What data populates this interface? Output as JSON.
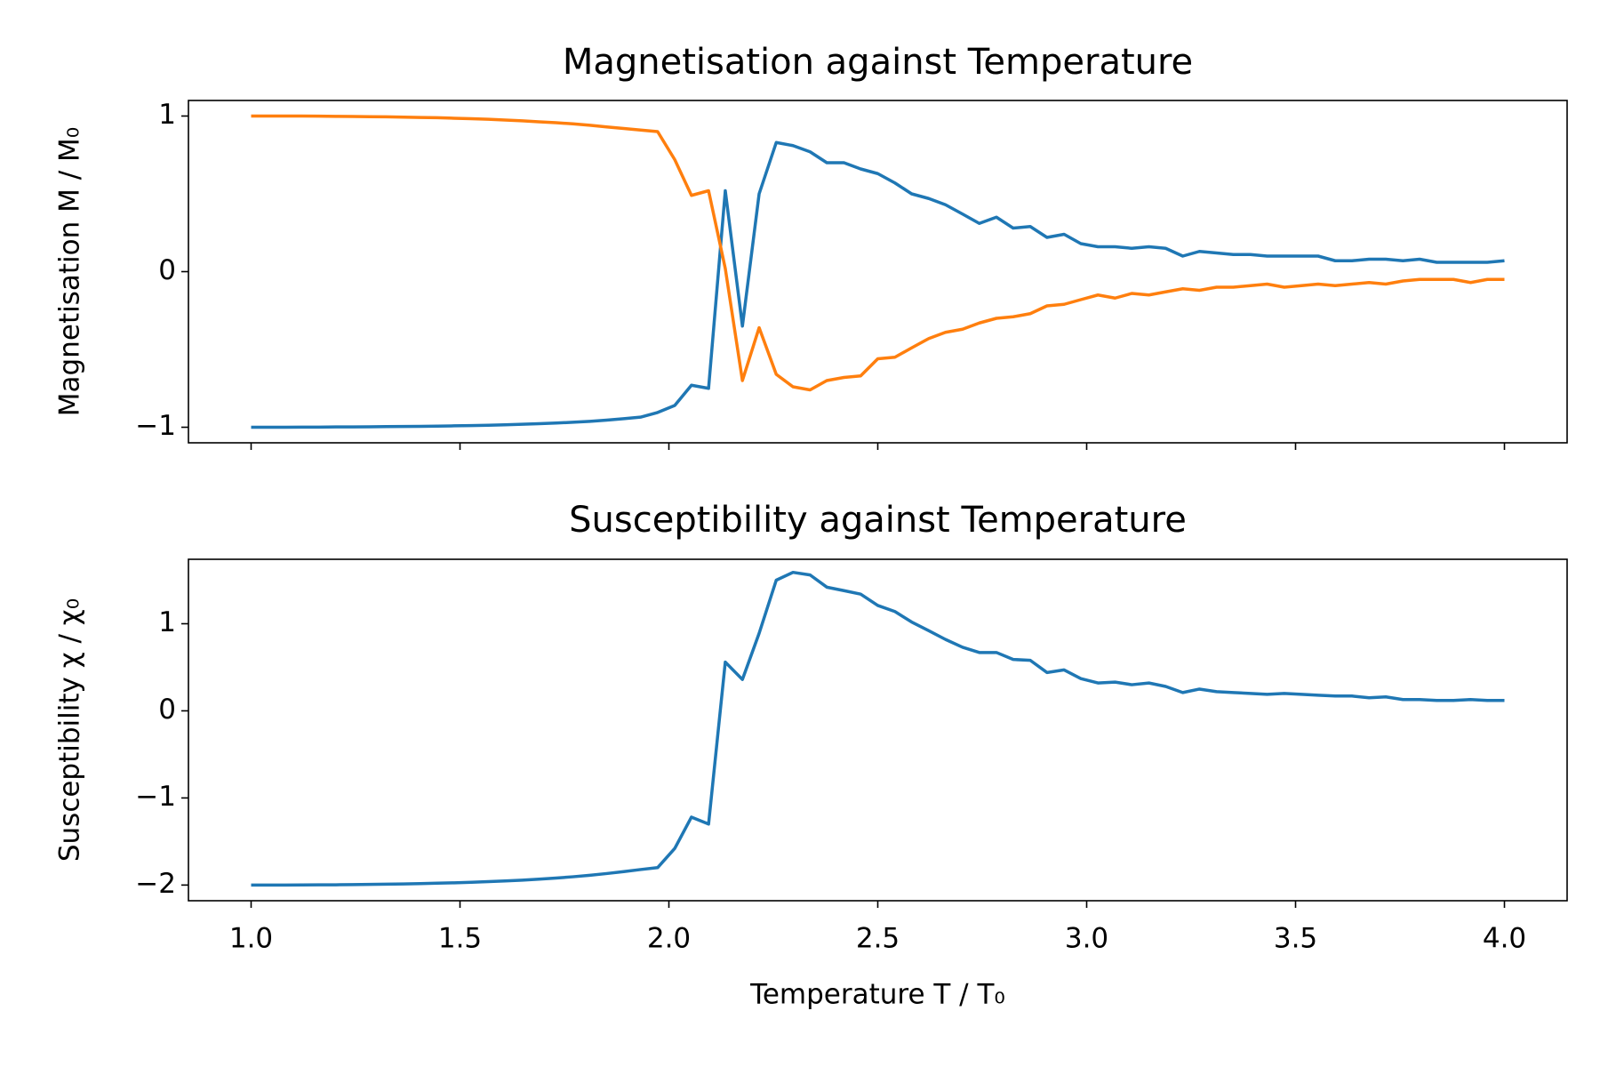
{
  "chart_data": [
    {
      "type": "line",
      "title": "Magnetisation against Temperature",
      "ylabel": "Magnetisation M / M₀",
      "x": [
        1.0,
        1.041,
        1.081,
        1.122,
        1.162,
        1.203,
        1.243,
        1.284,
        1.324,
        1.365,
        1.405,
        1.446,
        1.486,
        1.527,
        1.568,
        1.608,
        1.649,
        1.689,
        1.73,
        1.77,
        1.811,
        1.851,
        1.892,
        1.932,
        1.973,
        2.014,
        2.054,
        2.095,
        2.135,
        2.176,
        2.216,
        2.257,
        2.297,
        2.338,
        2.378,
        2.419,
        2.459,
        2.5,
        2.541,
        2.581,
        2.622,
        2.662,
        2.703,
        2.743,
        2.784,
        2.824,
        2.865,
        2.905,
        2.946,
        2.986,
        3.027,
        3.068,
        3.108,
        3.149,
        3.189,
        3.23,
        3.27,
        3.311,
        3.351,
        3.392,
        3.432,
        3.473,
        3.514,
        3.554,
        3.595,
        3.635,
        3.676,
        3.716,
        3.757,
        3.797,
        3.838,
        3.878,
        3.919,
        3.959,
        4.0
      ],
      "series": [
        {
          "color": "#1f77b4",
          "values": [
            -1.0,
            -1.0,
            -1.0,
            -0.999,
            -0.999,
            -0.998,
            -0.998,
            -0.997,
            -0.996,
            -0.995,
            -0.994,
            -0.993,
            -0.991,
            -0.989,
            -0.987,
            -0.984,
            -0.981,
            -0.977,
            -0.973,
            -0.968,
            -0.962,
            -0.954,
            -0.945,
            -0.935,
            -0.905,
            -0.86,
            -0.73,
            -0.75,
            0.52,
            -0.35,
            0.5,
            0.83,
            0.81,
            0.77,
            0.7,
            0.7,
            0.66,
            0.63,
            0.57,
            0.5,
            0.47,
            0.43,
            0.37,
            0.31,
            0.35,
            0.28,
            0.29,
            0.22,
            0.24,
            0.18,
            0.16,
            0.16,
            0.15,
            0.16,
            0.15,
            0.1,
            0.13,
            0.12,
            0.11,
            0.11,
            0.1,
            0.1,
            0.1,
            0.1,
            0.07,
            0.07,
            0.08,
            0.08,
            0.07,
            0.08,
            0.06,
            0.06,
            0.06,
            0.06,
            0.07
          ]
        },
        {
          "color": "#ff7f0e",
          "values": [
            1.0,
            1.0,
            1.0,
            1.0,
            0.999,
            0.998,
            0.997,
            0.996,
            0.995,
            0.993,
            0.991,
            0.989,
            0.986,
            0.983,
            0.979,
            0.974,
            0.969,
            0.963,
            0.957,
            0.95,
            0.941,
            0.93,
            0.92,
            0.91,
            0.9,
            0.72,
            0.49,
            0.52,
            0.02,
            -0.7,
            -0.36,
            -0.66,
            -0.74,
            -0.76,
            -0.7,
            -0.68,
            -0.67,
            -0.56,
            -0.55,
            -0.49,
            -0.43,
            -0.39,
            -0.37,
            -0.33,
            -0.3,
            -0.29,
            -0.27,
            -0.22,
            -0.21,
            -0.18,
            -0.15,
            -0.17,
            -0.14,
            -0.15,
            -0.13,
            -0.11,
            -0.12,
            -0.1,
            -0.1,
            -0.09,
            -0.08,
            -0.1,
            -0.09,
            -0.08,
            -0.09,
            -0.08,
            -0.07,
            -0.08,
            -0.06,
            -0.05,
            -0.05,
            -0.05,
            -0.07,
            -0.05,
            -0.05
          ]
        }
      ],
      "xlim": [
        0.85,
        4.15
      ],
      "xticks": [
        1,
        1.5,
        2,
        2.5,
        3,
        3.5,
        4
      ],
      "ylim": [
        -1.1,
        1.1
      ],
      "yticks": [
        {
          "value": -1,
          "label": "−1"
        },
        0,
        1
      ]
    },
    {
      "type": "line",
      "title": "Susceptibility against Temperature",
      "ylabel": "Susceptibility χ / χ₀",
      "xlabel": "Temperature T / T₀",
      "x": [
        1.0,
        1.041,
        1.081,
        1.122,
        1.162,
        1.203,
        1.243,
        1.284,
        1.324,
        1.365,
        1.405,
        1.446,
        1.486,
        1.527,
        1.568,
        1.608,
        1.649,
        1.689,
        1.73,
        1.77,
        1.811,
        1.851,
        1.892,
        1.932,
        1.973,
        2.014,
        2.054,
        2.095,
        2.135,
        2.176,
        2.216,
        2.257,
        2.297,
        2.338,
        2.378,
        2.419,
        2.459,
        2.5,
        2.541,
        2.581,
        2.622,
        2.662,
        2.703,
        2.743,
        2.784,
        2.824,
        2.865,
        2.905,
        2.946,
        2.986,
        3.027,
        3.068,
        3.108,
        3.149,
        3.189,
        3.23,
        3.27,
        3.311,
        3.351,
        3.392,
        3.432,
        3.473,
        3.514,
        3.554,
        3.595,
        3.635,
        3.676,
        3.716,
        3.757,
        3.797,
        3.838,
        3.878,
        3.919,
        3.959,
        4.0
      ],
      "series": [
        {
          "color": "#1f77b4",
          "values": [
            -2.0,
            -2.0,
            -2.0,
            -1.999,
            -1.998,
            -1.997,
            -1.995,
            -1.993,
            -1.99,
            -1.987,
            -1.983,
            -1.979,
            -1.974,
            -1.968,
            -1.961,
            -1.953,
            -1.944,
            -1.933,
            -1.92,
            -1.905,
            -1.888,
            -1.868,
            -1.846,
            -1.822,
            -1.8,
            -1.58,
            -1.22,
            -1.3,
            0.56,
            0.36,
            0.89,
            1.5,
            1.59,
            1.56,
            1.42,
            1.38,
            1.34,
            1.21,
            1.14,
            1.02,
            0.92,
            0.82,
            0.73,
            0.67,
            0.67,
            0.59,
            0.58,
            0.44,
            0.47,
            0.37,
            0.32,
            0.33,
            0.3,
            0.32,
            0.28,
            0.21,
            0.25,
            0.22,
            0.21,
            0.2,
            0.19,
            0.2,
            0.19,
            0.18,
            0.17,
            0.17,
            0.15,
            0.16,
            0.13,
            0.13,
            0.12,
            0.12,
            0.13,
            0.12,
            0.12
          ]
        }
      ],
      "xlim": [
        0.85,
        4.15
      ],
      "xticks": [
        {
          "value": 1,
          "label": "1.0"
        },
        {
          "value": 1.5,
          "label": "1.5"
        },
        {
          "value": 2,
          "label": "2.0"
        },
        {
          "value": 2.5,
          "label": "2.5"
        },
        {
          "value": 3,
          "label": "3.0"
        },
        {
          "value": 3.5,
          "label": "3.5"
        },
        {
          "value": 4,
          "label": "4.0"
        }
      ],
      "ylim": [
        -2.18,
        1.74
      ],
      "yticks": [
        {
          "value": -2,
          "label": "−2"
        },
        {
          "value": -1,
          "label": "−1"
        },
        0,
        1
      ]
    }
  ]
}
